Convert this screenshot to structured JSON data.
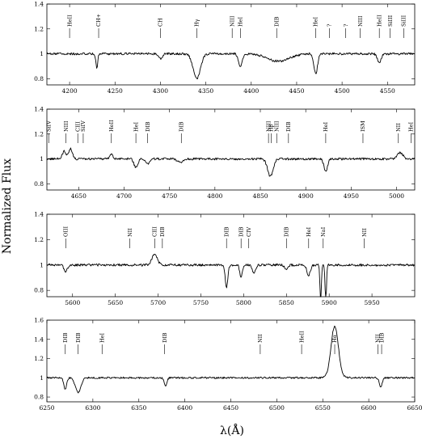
{
  "chart_data": {
    "type": "line",
    "ylabel": "Normalized Flux",
    "xlabel": "λ(Å)",
    "panels": [
      {
        "xlim": [
          4175,
          4580
        ],
        "ylim": [
          0.75,
          1.4
        ],
        "xticks": [
          4200,
          4250,
          4300,
          4350,
          4400,
          4450,
          4500,
          4550
        ],
        "yticks": [
          0.8,
          1.0,
          1.2,
          1.4
        ],
        "continuum": 1.0,
        "features": [
          {
            "x": 4230,
            "depth": -0.12,
            "width": 1
          },
          {
            "x": 4300,
            "depth": -0.04,
            "width": 2
          },
          {
            "x": 4340,
            "depth": -0.2,
            "width": 4
          },
          {
            "x": 4388,
            "depth": -0.1,
            "width": 2
          },
          {
            "x": 4430,
            "depth": -0.06,
            "width": 12
          },
          {
            "x": 4471,
            "depth": -0.16,
            "width": 2
          },
          {
            "x": 4541,
            "depth": -0.07,
            "width": 2
          }
        ],
        "labels": [
          {
            "text": "HeII",
            "x": 4200
          },
          {
            "text": "CH+",
            "x": 4232
          },
          {
            "text": "CH",
            "x": 4300
          },
          {
            "text": "Hγ",
            "x": 4340
          },
          {
            "text": "NIII",
            "x": 4379
          },
          {
            "text": "HeI",
            "x": 4388
          },
          {
            "text": "DIB",
            "x": 4428
          },
          {
            "text": "HeI",
            "x": 4471
          },
          {
            "text": "?",
            "x": 4486
          },
          {
            "text": "?",
            "x": 4504
          },
          {
            "text": "NIII",
            "x": 4520
          },
          {
            "text": "HeII",
            "x": 4541
          },
          {
            "text": "SiIII",
            "x": 4553
          },
          {
            "text": "SiIII",
            "x": 4568
          }
        ]
      },
      {
        "xlim": [
          4615,
          5020
        ],
        "ylim": [
          0.75,
          1.4
        ],
        "xticks": [
          4650,
          4700,
          4750,
          4800,
          4850,
          4900,
          4950,
          5000
        ],
        "yticks": [
          0.8,
          1.0,
          1.2,
          1.4
        ],
        "continuum": 1.0,
        "features": [
          {
            "x": 4634,
            "depth": 0.06,
            "width": 2
          },
          {
            "x": 4641,
            "depth": 0.08,
            "width": 2
          },
          {
            "x": 4686,
            "depth": 0.04,
            "width": 1.5
          },
          {
            "x": 4713,
            "depth": -0.07,
            "width": 2
          },
          {
            "x": 4726,
            "depth": -0.04,
            "width": 2
          },
          {
            "x": 4762,
            "depth": -0.03,
            "width": 3
          },
          {
            "x": 4861,
            "depth": -0.14,
            "width": 3
          },
          {
            "x": 4922,
            "depth": -0.1,
            "width": 2
          },
          {
            "x": 5004,
            "depth": 0.05,
            "width": 3
          }
        ],
        "labels": [
          {
            "text": "SiIV",
            "x": 4617
          },
          {
            "text": "NIII",
            "x": 4636
          },
          {
            "text": "CIII",
            "x": 4649
          },
          {
            "text": "SiIV",
            "x": 4655
          },
          {
            "text": "HeII",
            "x": 4686
          },
          {
            "text": "HeI",
            "x": 4713
          },
          {
            "text": "DIB",
            "x": 4726
          },
          {
            "text": "DIB",
            "x": 4763
          },
          {
            "text": "NIII",
            "x": 4859
          },
          {
            "text": "Hβ",
            "x": 4862
          },
          {
            "text": "NIII",
            "x": 4868
          },
          {
            "text": "DIB",
            "x": 4881
          },
          {
            "text": "HeI",
            "x": 4922
          },
          {
            "text": "ISM",
            "x": 4963
          },
          {
            "text": "NII",
            "x": 5002
          },
          {
            "text": "HeI",
            "x": 5016
          }
        ]
      },
      {
        "xlim": [
          5570,
          6000
        ],
        "ylim": [
          0.75,
          1.4
        ],
        "xticks": [
          5600,
          5650,
          5700,
          5750,
          5800,
          5850,
          5900,
          5950
        ],
        "yticks": [
          0.8,
          1.0,
          1.2,
          1.4
        ],
        "continuum": 1.0,
        "features": [
          {
            "x": 5592,
            "depth": -0.05,
            "width": 2
          },
          {
            "x": 5696,
            "depth": 0.09,
            "width": 3
          },
          {
            "x": 5780,
            "depth": -0.18,
            "width": 1.5
          },
          {
            "x": 5797,
            "depth": -0.1,
            "width": 1.5
          },
          {
            "x": 5812,
            "depth": -0.06,
            "width": 2
          },
          {
            "x": 5850,
            "depth": -0.04,
            "width": 2
          },
          {
            "x": 5876,
            "depth": -0.08,
            "width": 2
          },
          {
            "x": 5890,
            "depth": -0.3,
            "width": 0.8
          },
          {
            "x": 5896,
            "depth": -0.3,
            "width": 0.8
          }
        ],
        "labels": [
          {
            "text": "OIII",
            "x": 5592
          },
          {
            "text": "NII",
            "x": 5667
          },
          {
            "text": "CIII",
            "x": 5696
          },
          {
            "text": "DIB",
            "x": 5705
          },
          {
            "text": "DIB",
            "x": 5780
          },
          {
            "text": "DIB",
            "x": 5797
          },
          {
            "text": "CIV",
            "x": 5806
          },
          {
            "text": "DIB",
            "x": 5850
          },
          {
            "text": "HeI",
            "x": 5876
          },
          {
            "text": "NaI",
            "x": 5893
          },
          {
            "text": "NII",
            "x": 5941
          }
        ]
      },
      {
        "xlim": [
          6250,
          6650
        ],
        "ylim": [
          0.75,
          1.6
        ],
        "xticks": [
          6250,
          6300,
          6350,
          6400,
          6450,
          6500,
          6550,
          6600,
          6650
        ],
        "yticks": [
          0.8,
          1.0,
          1.2,
          1.4,
          1.6
        ],
        "continuum": 1.0,
        "features": [
          {
            "x": 6270,
            "depth": -0.12,
            "width": 1.5
          },
          {
            "x": 6284,
            "depth": -0.15,
            "width": 3
          },
          {
            "x": 6379,
            "depth": -0.08,
            "width": 1.5
          },
          {
            "x": 6563,
            "depth": 0.54,
            "width": 4
          },
          {
            "x": 6613,
            "depth": -0.1,
            "width": 1.5
          }
        ],
        "labels": [
          {
            "text": "DIB",
            "x": 6270
          },
          {
            "text": "DIB",
            "x": 6284
          },
          {
            "text": "HeI",
            "x": 6310
          },
          {
            "text": "DIB",
            "x": 6378
          },
          {
            "text": "NII",
            "x": 6482
          },
          {
            "text": "HeII",
            "x": 6527
          },
          {
            "text": "Hα",
            "x": 6563
          },
          {
            "text": "NII",
            "x": 6610
          },
          {
            "text": "DIB",
            "x": 6614
          }
        ]
      }
    ]
  }
}
